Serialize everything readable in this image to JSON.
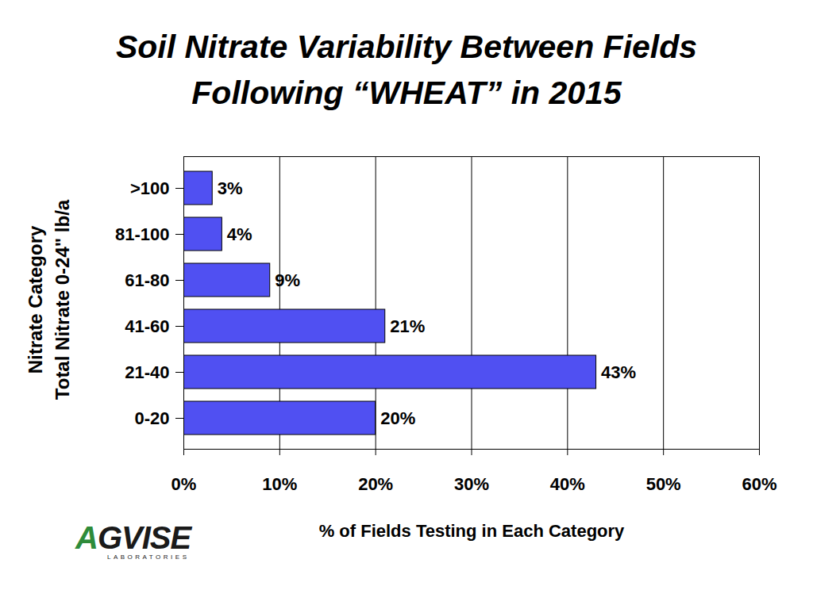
{
  "chart_data": {
    "type": "bar",
    "orientation": "horizontal",
    "title": [
      "Soil Nitrate Variability Between Fields",
      "Following “WHEAT” in 2015"
    ],
    "y_label": [
      "Nitrate Category",
      "Total Nitrate 0-24\" lb/a"
    ],
    "x_label": "% of Fields Testing in Each Category",
    "categories": [
      ">100",
      "81-100",
      "61-80",
      "41-60",
      "21-40",
      "0-20"
    ],
    "values": [
      3,
      4,
      9,
      21,
      43,
      20
    ],
    "value_labels": [
      "3%",
      "4%",
      "9%",
      "21%",
      "43%",
      "20%"
    ],
    "data_labels": true,
    "color": "#5050f2",
    "xlim": [
      0,
      60
    ],
    "xticks": [
      {
        "value": 0,
        "label": "0%"
      },
      {
        "value": 10,
        "label": "10%"
      },
      {
        "value": 20,
        "label": "20%"
      },
      {
        "value": 30,
        "label": "30%"
      },
      {
        "value": 40,
        "label": "40%"
      },
      {
        "value": 50,
        "label": "50%"
      },
      {
        "value": 60,
        "label": "60%"
      }
    ],
    "grid": true,
    "annotations": [
      "AGVISE",
      "LABORATORIES"
    ]
  }
}
